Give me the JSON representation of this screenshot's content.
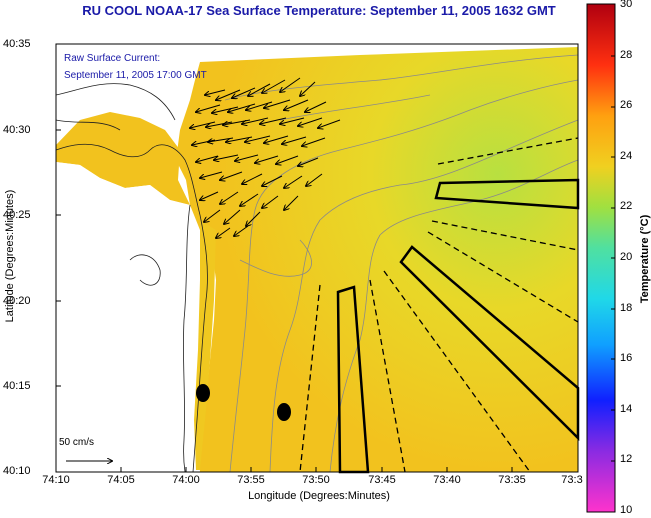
{
  "title": "RU COOL  NOAA-17  Sea Surface Temperature:  September 11, 2005 1632 GMT",
  "current": {
    "line1": "Raw Surface Current:",
    "line2": "September 11, 2005 17:00 GMT"
  },
  "axes": {
    "xlabel": "Longitude (Degrees:Minutes)",
    "ylabel": "Latitude (Degrees:Minutes)",
    "xticks": [
      "74:10",
      "74:05",
      "74:00",
      "73:55",
      "73:50",
      "73:45",
      "73:40",
      "73:35",
      "73:3"
    ],
    "yticks": [
      "40:35",
      "40:30",
      "40:25",
      "40:20",
      "40:15",
      "40:10"
    ]
  },
  "colorbar": {
    "label": "Temperature (°C)",
    "ticks": [
      "30",
      "28",
      "26",
      "24",
      "22",
      "20",
      "18",
      "16",
      "14",
      "12",
      "10"
    ]
  },
  "scale_label": "50 cm/s",
  "colors": {
    "title": "#1a1aa8",
    "sst_warm": "#f2c21e",
    "sst_mid": "#e6d830",
    "sst_cool": "#b4e040",
    "land": "#ffffff"
  }
}
